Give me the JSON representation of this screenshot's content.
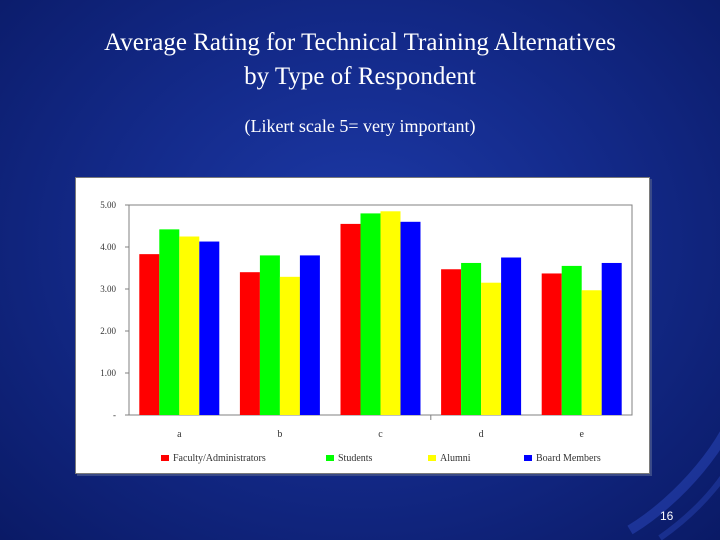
{
  "slide": {
    "title_line1": "Average Rating for Technical Training Alternatives",
    "title_line2": "by Type of Respondent",
    "subtitle": "(Likert scale 5= very important)",
    "page_number": "16"
  },
  "chart_data": {
    "type": "bar",
    "title": "",
    "xlabel": "",
    "ylabel": "",
    "categories": [
      "a",
      "b",
      "c",
      "d",
      "e"
    ],
    "ylim": [
      0,
      5
    ],
    "yticks": [
      "-",
      "1.00",
      "2.00",
      "3.00",
      "4.00",
      "5.00"
    ],
    "grid": false,
    "legend_position": "bottom",
    "series": [
      {
        "name": "Faculty/Administrators",
        "color": "#ff0000",
        "values": [
          3.83,
          3.4,
          4.55,
          3.47,
          3.37
        ]
      },
      {
        "name": "Students",
        "color": "#00ff00",
        "values": [
          4.42,
          3.8,
          4.8,
          3.62,
          3.55
        ]
      },
      {
        "name": "Alumni",
        "color": "#ffff00",
        "values": [
          4.25,
          3.29,
          4.85,
          3.15,
          2.97
        ]
      },
      {
        "name": "Board Members",
        "color": "#0000ff",
        "values": [
          4.13,
          3.8,
          4.6,
          3.75,
          3.62
        ]
      }
    ]
  }
}
